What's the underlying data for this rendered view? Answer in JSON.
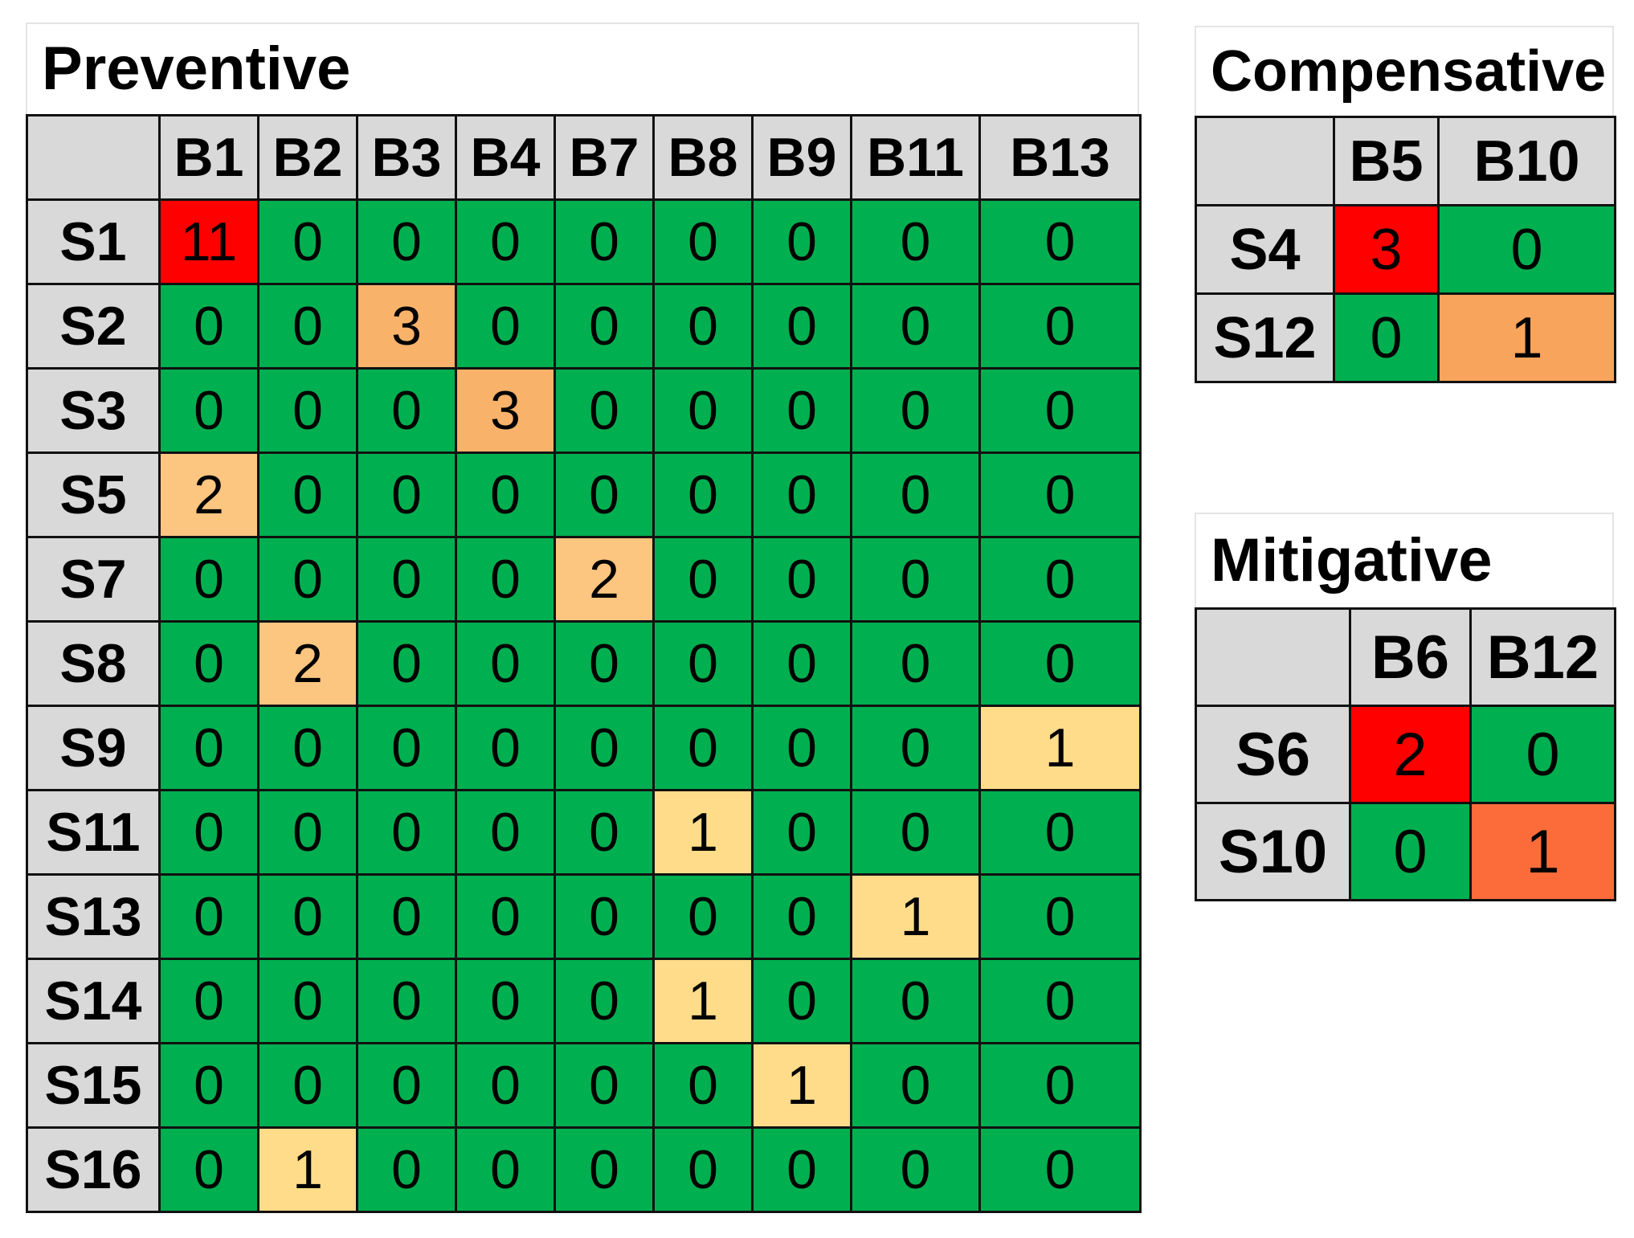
{
  "chart_data": [
    {
      "type": "heatmap",
      "title": "Preventive",
      "columns": [
        "B1",
        "B2",
        "B3",
        "B4",
        "B7",
        "B8",
        "B9",
        "B11",
        "B13"
      ],
      "rows": [
        "S1",
        "S2",
        "S3",
        "S5",
        "S7",
        "S8",
        "S9",
        "S11",
        "S13",
        "S14",
        "S15",
        "S16"
      ],
      "values": [
        [
          11,
          0,
          0,
          0,
          0,
          0,
          0,
          0,
          0
        ],
        [
          0,
          0,
          3,
          0,
          0,
          0,
          0,
          0,
          0
        ],
        [
          0,
          0,
          0,
          3,
          0,
          0,
          0,
          0,
          0
        ],
        [
          2,
          0,
          0,
          0,
          0,
          0,
          0,
          0,
          0
        ],
        [
          0,
          0,
          0,
          0,
          2,
          0,
          0,
          0,
          0
        ],
        [
          0,
          2,
          0,
          0,
          0,
          0,
          0,
          0,
          0
        ],
        [
          0,
          0,
          0,
          0,
          0,
          0,
          0,
          0,
          1
        ],
        [
          0,
          0,
          0,
          0,
          0,
          1,
          0,
          0,
          0
        ],
        [
          0,
          0,
          0,
          0,
          0,
          0,
          0,
          1,
          0
        ],
        [
          0,
          0,
          0,
          0,
          0,
          1,
          0,
          0,
          0
        ],
        [
          0,
          0,
          0,
          0,
          0,
          0,
          1,
          0,
          0
        ],
        [
          0,
          1,
          0,
          0,
          0,
          0,
          0,
          0,
          0
        ]
      ],
      "cell_colors": [
        [
          "#ff0000",
          "#00b050",
          "#00b050",
          "#00b050",
          "#00b050",
          "#00b050",
          "#00b050",
          "#00b050",
          "#00b050"
        ],
        [
          "#00b050",
          "#00b050",
          "#f8b26a",
          "#00b050",
          "#00b050",
          "#00b050",
          "#00b050",
          "#00b050",
          "#00b050"
        ],
        [
          "#00b050",
          "#00b050",
          "#00b050",
          "#f8b26a",
          "#00b050",
          "#00b050",
          "#00b050",
          "#00b050",
          "#00b050"
        ],
        [
          "#fcc580",
          "#00b050",
          "#00b050",
          "#00b050",
          "#00b050",
          "#00b050",
          "#00b050",
          "#00b050",
          "#00b050"
        ],
        [
          "#00b050",
          "#00b050",
          "#00b050",
          "#00b050",
          "#fcc580",
          "#00b050",
          "#00b050",
          "#00b050",
          "#00b050"
        ],
        [
          "#00b050",
          "#fcc580",
          "#00b050",
          "#00b050",
          "#00b050",
          "#00b050",
          "#00b050",
          "#00b050",
          "#00b050"
        ],
        [
          "#00b050",
          "#00b050",
          "#00b050",
          "#00b050",
          "#00b050",
          "#00b050",
          "#00b050",
          "#00b050",
          "#ffdc8a"
        ],
        [
          "#00b050",
          "#00b050",
          "#00b050",
          "#00b050",
          "#00b050",
          "#ffdc8a",
          "#00b050",
          "#00b050",
          "#00b050"
        ],
        [
          "#00b050",
          "#00b050",
          "#00b050",
          "#00b050",
          "#00b050",
          "#00b050",
          "#00b050",
          "#ffdc8a",
          "#00b050"
        ],
        [
          "#00b050",
          "#00b050",
          "#00b050",
          "#00b050",
          "#00b050",
          "#ffdc8a",
          "#00b050",
          "#00b050",
          "#00b050"
        ],
        [
          "#00b050",
          "#00b050",
          "#00b050",
          "#00b050",
          "#00b050",
          "#00b050",
          "#ffdc8a",
          "#00b050",
          "#00b050"
        ],
        [
          "#00b050",
          "#ffdc8a",
          "#00b050",
          "#00b050",
          "#00b050",
          "#00b050",
          "#00b050",
          "#00b050",
          "#00b050"
        ]
      ]
    },
    {
      "type": "heatmap",
      "title": "Compensative",
      "columns": [
        "B5",
        "B10"
      ],
      "rows": [
        "S4",
        "S12"
      ],
      "values": [
        [
          3,
          0
        ],
        [
          0,
          1
        ]
      ],
      "cell_colors": [
        [
          "#ff0000",
          "#00b050"
        ],
        [
          "#00b050",
          "#f8a45c"
        ]
      ]
    },
    {
      "type": "heatmap",
      "title": "Mitigative",
      "columns": [
        "B6",
        "B12"
      ],
      "rows": [
        "S6",
        "S10"
      ],
      "values": [
        [
          2,
          0
        ],
        [
          0,
          1
        ]
      ],
      "cell_colors": [
        [
          "#ff0000",
          "#00b050"
        ],
        [
          "#00b050",
          "#fb6c3a"
        ]
      ]
    }
  ]
}
